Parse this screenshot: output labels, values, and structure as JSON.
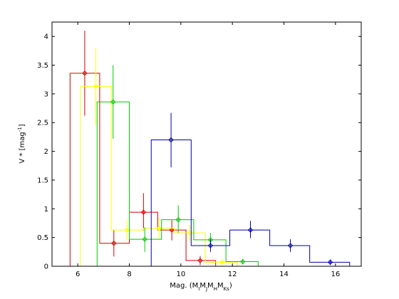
{
  "chart_data": {
    "type": "step-histogram-with-errorbars",
    "xlim": [
      5,
      17
    ],
    "ylim": [
      0,
      4.25
    ],
    "xticks": [
      6,
      8,
      10,
      12,
      14,
      16
    ],
    "yticks": [
      0,
      0.5,
      1,
      1.5,
      2,
      2.5,
      3,
      3.5,
      4
    ],
    "xtick_labels": [
      "6",
      "8",
      "10",
      "12",
      "14",
      "16"
    ],
    "ytick_labels": [
      "0",
      "0.5",
      "1",
      "1.5",
      "2",
      "2.5",
      "3",
      "3.5",
      "4"
    ],
    "xlabel": {
      "main": "Mag. (M",
      "subs": [
        "I",
        "J",
        "H",
        "Ks"
      ],
      "sep": "M",
      "tail": ")"
    },
    "ylabel": "V * [mag",
    "ylabel_sup": "-1",
    "ylabel_tail": "]",
    "grid": false,
    "series": [
      {
        "color": "#d40000",
        "edges": [
          5.7,
          6.85,
          8.0,
          9.1,
          10.2,
          11.35
        ],
        "heights": [
          3.36,
          0.4,
          0.94,
          0.63,
          0.1
        ],
        "points": [
          {
            "x": 6.27,
            "y": 3.36,
            "lo": 2.62,
            "hi": 4.1
          },
          {
            "x": 7.4,
            "y": 0.4,
            "lo": 0.17,
            "hi": 0.63
          },
          {
            "x": 8.55,
            "y": 0.94,
            "lo": 0.62,
            "hi": 1.27
          },
          {
            "x": 9.65,
            "y": 0.63,
            "lo": 0.45,
            "hi": 0.8
          },
          {
            "x": 10.75,
            "y": 0.1,
            "lo": 0.02,
            "hi": 0.18
          }
        ]
      },
      {
        "color": "#ffff00",
        "edges": [
          6.1,
          7.3,
          8.55,
          9.75,
          10.95,
          12.2
        ],
        "heights": [
          3.13,
          0.63,
          0.66,
          0.58,
          0.07
        ],
        "points": [
          {
            "x": 6.7,
            "y": 3.13,
            "lo": 2.45,
            "hi": 3.8
          },
          {
            "x": 7.9,
            "y": 0.63,
            "lo": 0.45,
            "hi": 0.8
          },
          {
            "x": 9.15,
            "y": 0.66,
            "lo": 0.48,
            "hi": 0.85
          },
          {
            "x": 10.35,
            "y": 0.58,
            "lo": 0.43,
            "hi": 0.72
          },
          {
            "x": 11.6,
            "y": 0.07,
            "lo": 0.02,
            "hi": 0.12
          }
        ]
      },
      {
        "color": "#00cc00",
        "edges": [
          6.75,
          8.0,
          9.25,
          10.5,
          11.75,
          13.0
        ],
        "heights": [
          2.86,
          0.47,
          0.81,
          0.46,
          0.08
        ],
        "points": [
          {
            "x": 7.37,
            "y": 2.86,
            "lo": 2.22,
            "hi": 3.5
          },
          {
            "x": 8.6,
            "y": 0.47,
            "lo": 0.25,
            "hi": 0.68
          },
          {
            "x": 9.9,
            "y": 0.81,
            "lo": 0.58,
            "hi": 1.06
          },
          {
            "x": 11.15,
            "y": 0.46,
            "lo": 0.33,
            "hi": 0.58
          },
          {
            "x": 12.4,
            "y": 0.08,
            "lo": 0.03,
            "hi": 0.13
          }
        ]
      },
      {
        "color": "#0000aa",
        "edges": [
          8.85,
          10.4,
          11.9,
          13.45,
          15.0,
          16.55
        ],
        "heights": [
          2.2,
          0.36,
          0.63,
          0.36,
          0.07
        ],
        "points": [
          {
            "x": 9.62,
            "y": 2.2,
            "lo": 1.72,
            "hi": 2.67
          },
          {
            "x": 11.15,
            "y": 0.36,
            "lo": 0.25,
            "hi": 0.47
          },
          {
            "x": 12.7,
            "y": 0.63,
            "lo": 0.49,
            "hi": 0.79
          },
          {
            "x": 14.25,
            "y": 0.36,
            "lo": 0.25,
            "hi": 0.47
          },
          {
            "x": 15.8,
            "y": 0.07,
            "lo": 0.02,
            "hi": 0.12
          }
        ]
      }
    ]
  }
}
